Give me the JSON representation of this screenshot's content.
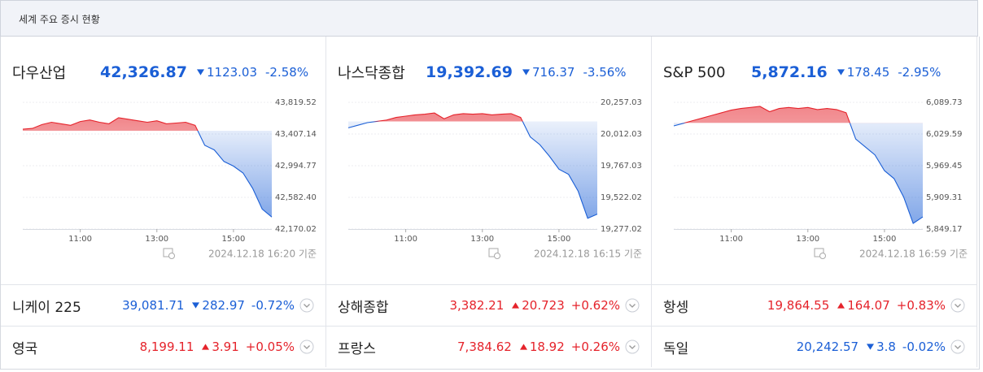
{
  "header": {
    "title": "세계 주요 증시 현황"
  },
  "colors": {
    "up": "#e5232b",
    "down": "#1b5fd6"
  },
  "indices": [
    {
      "name": "다우산업",
      "price": "42,326.87",
      "change": "1123.03",
      "change_pct": "-2.58%",
      "direction": "down",
      "timestamp": "2024.12.18 16:20 기준",
      "chart": {
        "type": "line",
        "prev_close": 43449.9,
        "x": [
          9.5,
          9.75,
          10,
          10.25,
          10.5,
          10.75,
          11,
          11.25,
          11.5,
          11.75,
          12,
          12.25,
          12.5,
          12.75,
          13,
          13.25,
          13.5,
          13.75,
          14,
          14.25,
          14.5,
          14.75,
          15,
          15.25,
          15.5,
          15.75,
          16
        ],
        "values": [
          43470,
          43480,
          43530,
          43560,
          43540,
          43520,
          43570,
          43590,
          43560,
          43540,
          43620,
          43600,
          43580,
          43560,
          43580,
          43540,
          43550,
          43560,
          43520,
          43260,
          43200,
          43050,
          42990,
          42900,
          42700,
          42430,
          42326.87
        ],
        "xlim": [
          9.5,
          16
        ],
        "xticks": [
          {
            "value": 11,
            "label": "11:00"
          },
          {
            "value": 13,
            "label": "13:00"
          },
          {
            "value": 15,
            "label": "15:00"
          }
        ],
        "ylim": [
          42170.02,
          43819.52
        ],
        "yticks": [
          {
            "value": 43819.52,
            "label": "43,819.52"
          },
          {
            "value": 43407.14,
            "label": "43,407.14"
          },
          {
            "value": 42994.77,
            "label": "42,994.77"
          },
          {
            "value": 42582.4,
            "label": "42,582.40"
          },
          {
            "value": 42170.02,
            "label": "42,170.02"
          }
        ]
      }
    },
    {
      "name": "나스닥종합",
      "price": "19,392.69",
      "change": "716.37",
      "change_pct": "-3.56%",
      "direction": "down",
      "timestamp": "2024.12.18 16:15 기준",
      "chart": {
        "type": "line",
        "prev_close": 20109.06,
        "x": [
          9.5,
          9.75,
          10,
          10.25,
          10.5,
          10.75,
          11,
          11.25,
          11.5,
          11.75,
          12,
          12.25,
          12.5,
          12.75,
          13,
          13.25,
          13.5,
          13.75,
          14,
          14.25,
          14.5,
          14.75,
          15,
          15.25,
          15.5,
          15.75,
          16
        ],
        "values": [
          20060,
          20080,
          20100,
          20110,
          20120,
          20140,
          20150,
          20160,
          20165,
          20175,
          20130,
          20160,
          20170,
          20165,
          20170,
          20160,
          20165,
          20170,
          20140,
          19990,
          19930,
          19840,
          19740,
          19700,
          19570,
          19360,
          19392.69
        ],
        "xlim": [
          9.5,
          16
        ],
        "xticks": [
          {
            "value": 11,
            "label": "11:00"
          },
          {
            "value": 13,
            "label": "13:00"
          },
          {
            "value": 15,
            "label": "15:00"
          }
        ],
        "ylim": [
          19277.02,
          20257.03
        ],
        "yticks": [
          {
            "value": 20257.03,
            "label": "20,257.03"
          },
          {
            "value": 20012.03,
            "label": "20,012.03"
          },
          {
            "value": 19767.03,
            "label": "19,767.03"
          },
          {
            "value": 19522.02,
            "label": "19,522.02"
          },
          {
            "value": 19277.02,
            "label": "19,277.02"
          }
        ]
      }
    },
    {
      "name": "S&P 500",
      "price": "5,872.16",
      "change": "178.45",
      "change_pct": "-2.95%",
      "direction": "down",
      "timestamp": "2024.12.18 16:59 기준",
      "chart": {
        "type": "line",
        "prev_close": 6050.61,
        "x": [
          9.5,
          9.75,
          10,
          10.25,
          10.5,
          10.75,
          11,
          11.25,
          11.5,
          11.75,
          12,
          12.25,
          12.5,
          12.75,
          13,
          13.25,
          13.5,
          13.75,
          14,
          14.25,
          14.5,
          14.75,
          15,
          15.25,
          15.5,
          15.75,
          16
        ],
        "values": [
          6045,
          6050,
          6055,
          6060,
          6065,
          6070,
          6075,
          6078,
          6080,
          6082,
          6072,
          6078,
          6080,
          6078,
          6080,
          6076,
          6078,
          6076,
          6070,
          6020,
          6005,
          5990,
          5960,
          5945,
          5910,
          5860,
          5872.16
        ],
        "xlim": [
          9.5,
          16
        ],
        "xticks": [
          {
            "value": 11,
            "label": "11:00"
          },
          {
            "value": 13,
            "label": "13:00"
          },
          {
            "value": 15,
            "label": "15:00"
          }
        ],
        "ylim": [
          5849.17,
          6089.73
        ],
        "yticks": [
          {
            "value": 6089.73,
            "label": "6,089.73"
          },
          {
            "value": 6029.59,
            "label": "6,029.59"
          },
          {
            "value": 5969.45,
            "label": "5,969.45"
          },
          {
            "value": 5909.31,
            "label": "5,909.31"
          },
          {
            "value": 5849.17,
            "label": "5,849.17"
          }
        ]
      }
    }
  ],
  "markets": [
    {
      "name": "니케이 225",
      "price": "39,081.71",
      "change": "282.97",
      "change_pct": "-0.72%",
      "direction": "down"
    },
    {
      "name": "상해종합",
      "price": "3,382.21",
      "change": "20.723",
      "change_pct": "+0.62%",
      "direction": "up"
    },
    {
      "name": "항셍",
      "price": "19,864.55",
      "change": "164.07",
      "change_pct": "+0.83%",
      "direction": "up"
    },
    {
      "name": "영국",
      "price": "8,199.11",
      "change": "3.91",
      "change_pct": "+0.05%",
      "direction": "up"
    },
    {
      "name": "프랑스",
      "price": "7,384.62",
      "change": "18.92",
      "change_pct": "+0.26%",
      "direction": "up"
    },
    {
      "name": "독일",
      "price": "20,242.57",
      "change": "3.8",
      "change_pct": "-0.02%",
      "direction": "down"
    }
  ]
}
